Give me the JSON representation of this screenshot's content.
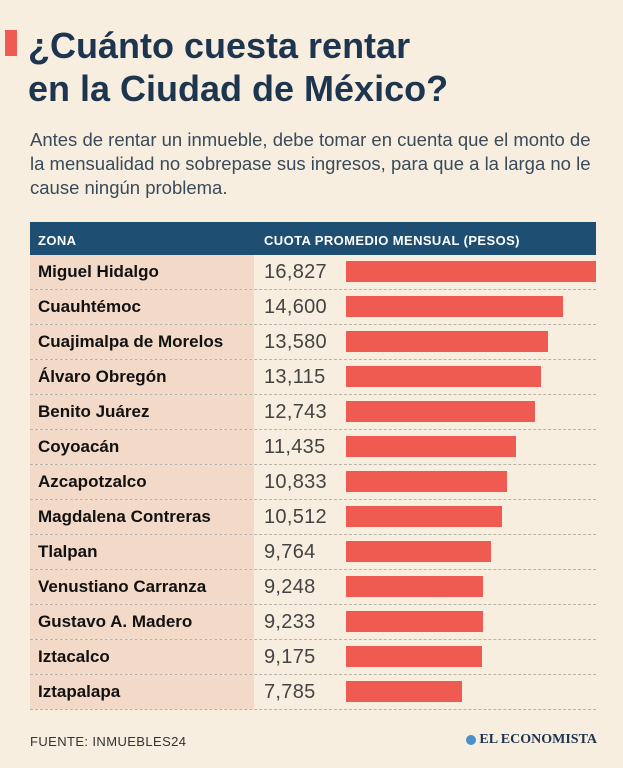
{
  "title_line1": "¿Cuánto cuesta rentar",
  "title_line2": "en la Ciudad de México?",
  "subtitle": "Antes de rentar un inmueble, debe tomar en cuenta que el monto de la mensualidad no sobrepase sus ingresos, para que a la larga no le cause ningún problema.",
  "header": {
    "zona": "Zona",
    "cuota": "Cuota promedio mensual (Pesos)"
  },
  "chart_data": {
    "type": "bar",
    "orientation": "horizontal",
    "categories": [
      "Miguel Hidalgo",
      "Cuauhtémoc",
      "Cuajimalpa de Morelos",
      "Álvaro Obregón",
      "Benito Juárez",
      "Coyoacán",
      "Azcapotzalco",
      "Magdalena Contreras",
      "Tlalpan",
      "Venustiano Carranza",
      "Gustavo A. Madero",
      "Iztacalco",
      "Iztapalapa"
    ],
    "values": [
      16827,
      14600,
      13580,
      13115,
      12743,
      11435,
      10833,
      10512,
      9764,
      9248,
      9233,
      9175,
      7785
    ],
    "labels": [
      "16,827",
      "14,600",
      "13,580",
      "13,115",
      "12,743",
      "11,435",
      "10,833",
      "10,512",
      "9,764",
      "9,248",
      "9,233",
      "9,175",
      "7,785"
    ],
    "bar_color": "#ef5b50"
  },
  "footer": {
    "source": "FUENTE:  INMUEBLES24",
    "brand": "EL ECONOMISTA"
  },
  "colors": {
    "background": "#f7eedf",
    "header": "#1e4f73",
    "accent": "#ef5b50",
    "zone_cell": "#f3d9c8"
  }
}
